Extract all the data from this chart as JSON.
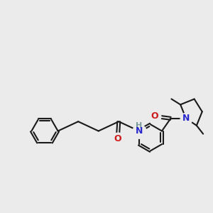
{
  "bg_color": "#ebebeb",
  "bond_color": "#1a1a1a",
  "N_color": "#2828cc",
  "O_color": "#cc1a1a",
  "H_color": "#7a9a9a",
  "lw": 1.5,
  "fs": 9.0,
  "fsH": 8.0,
  "xlim": [
    0,
    10
  ],
  "ylim": [
    0,
    10
  ]
}
